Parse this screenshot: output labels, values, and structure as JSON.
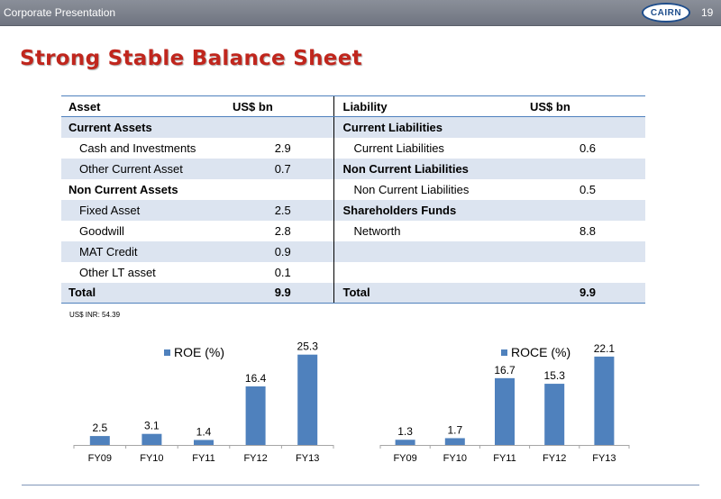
{
  "header": {
    "subtitle": "Corporate Presentation",
    "logo_text": "CAIRN",
    "page_number": "19"
  },
  "slide": {
    "title": "Strong Stable Balance Sheet"
  },
  "table": {
    "headers": [
      "Asset",
      "US$ bn",
      "Liability",
      "US$ bn"
    ],
    "rows": [
      {
        "asset": "Current Assets",
        "av": "",
        "liability": "Current Liabilities",
        "lv": "",
        "ab": true,
        "lb": true,
        "ai": false,
        "li": false
      },
      {
        "asset": "Cash and Investments",
        "av": "2.9",
        "liability": "Current Liabilities",
        "lv": "0.6",
        "ab": false,
        "lb": false,
        "ai": true,
        "li": true
      },
      {
        "asset": "Other Current Asset",
        "av": "0.7",
        "liability": "Non Current Liabilities",
        "lv": "",
        "ab": false,
        "lb": true,
        "ai": true,
        "li": false
      },
      {
        "asset": "Non Current Assets",
        "av": "",
        "liability": "Non Current Liabilities",
        "lv": "0.5",
        "ab": true,
        "lb": false,
        "ai": false,
        "li": true
      },
      {
        "asset": "Fixed Asset",
        "av": "2.5",
        "liability": "Shareholders Funds",
        "lv": "",
        "ab": false,
        "lb": true,
        "ai": true,
        "li": false
      },
      {
        "asset": "Goodwill",
        "av": "2.8",
        "liability": "Networth",
        "lv": "8.8",
        "ab": false,
        "lb": false,
        "ai": true,
        "li": true
      },
      {
        "asset": "MAT Credit",
        "av": "0.9",
        "liability": "",
        "lv": "",
        "ab": false,
        "lb": false,
        "ai": true,
        "li": false
      },
      {
        "asset": "Other LT asset",
        "av": "0.1",
        "liability": "",
        "lv": "",
        "ab": false,
        "lb": false,
        "ai": true,
        "li": false
      },
      {
        "asset": "Total",
        "av": "9.9",
        "liability": "Total",
        "lv": "9.9",
        "ab": true,
        "lb": true,
        "ai": false,
        "li": false
      }
    ],
    "footnote": "US$ INR: 54.39"
  },
  "chart_data": [
    {
      "type": "bar",
      "categories": [
        "FY09",
        "FY10",
        "FY11",
        "FY12",
        "FY13"
      ],
      "series": [
        {
          "name": "ROE (%)",
          "values": [
            2.5,
            3.1,
            1.4,
            16.4,
            25.3
          ],
          "color": "#4f81bd"
        }
      ],
      "ylim": [
        0,
        28
      ]
    },
    {
      "type": "bar",
      "categories": [
        "FY09",
        "FY10",
        "FY11",
        "FY12",
        "FY13"
      ],
      "series": [
        {
          "name": "ROCE (%)",
          "values": [
            1.3,
            1.7,
            16.7,
            15.3,
            22.1
          ],
          "color": "#4f81bd"
        }
      ],
      "ylim": [
        0,
        25
      ]
    }
  ]
}
